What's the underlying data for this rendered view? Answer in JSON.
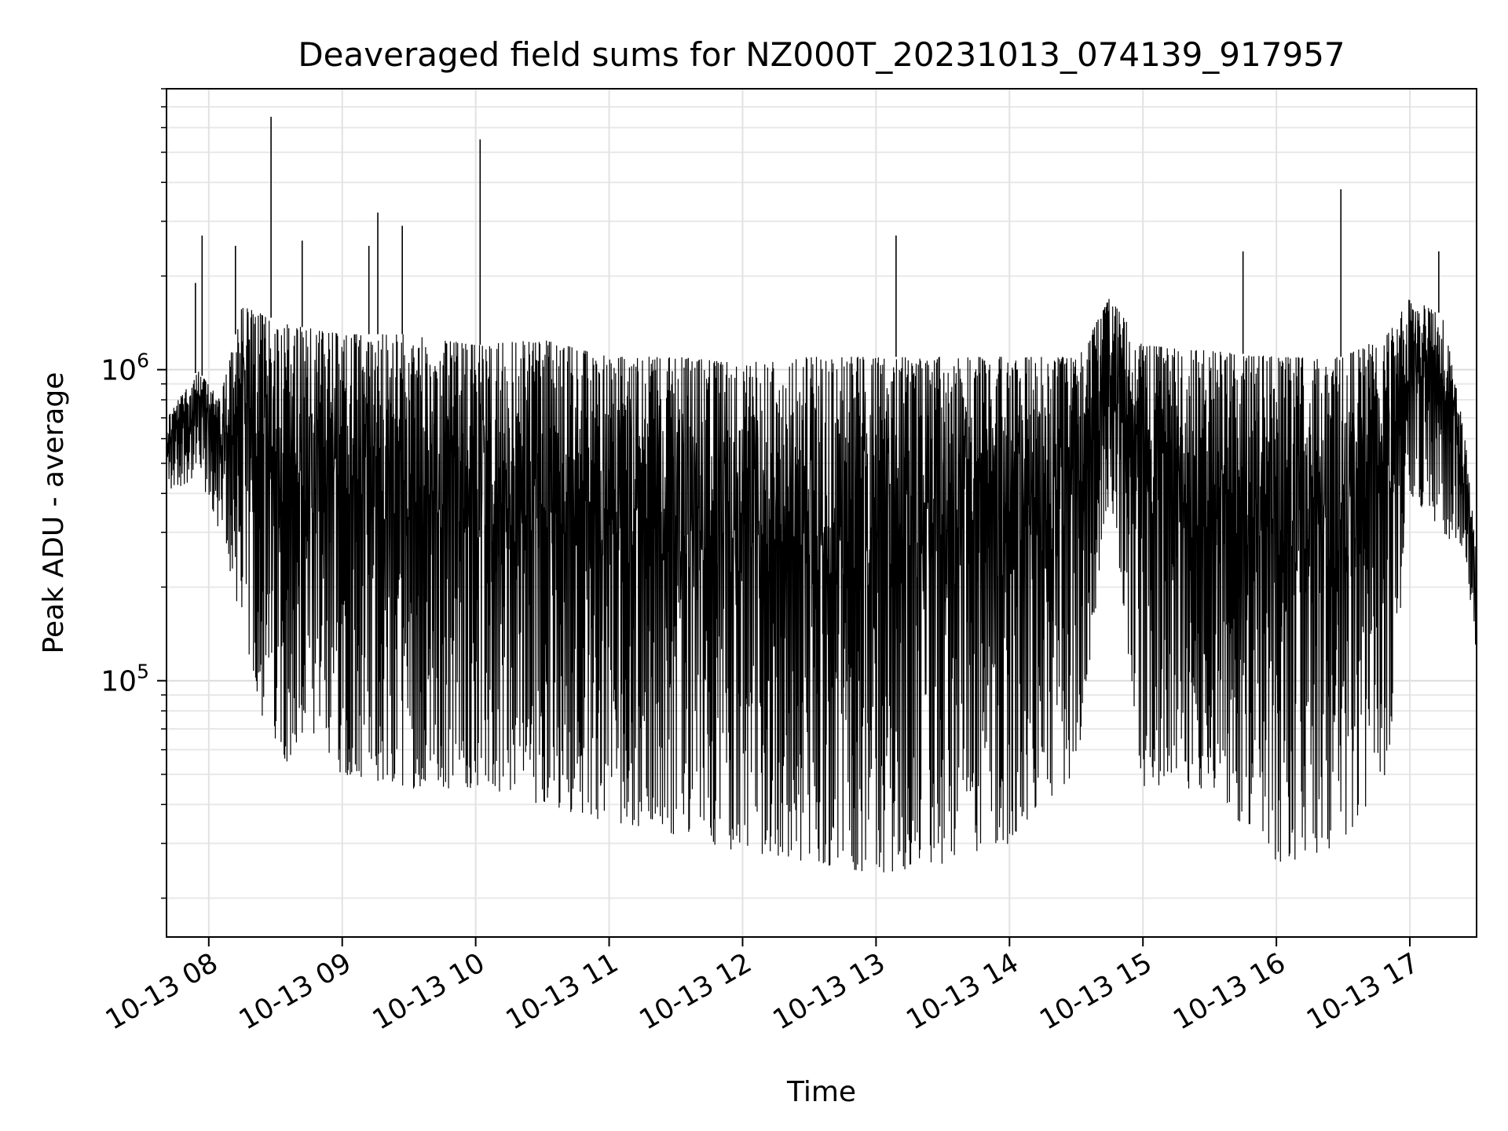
{
  "chart_data": {
    "type": "line",
    "title": "Deaveraged field sums for NZ000T_20231013_074139_917957",
    "xlabel": "Time",
    "ylabel": "Peak ADU - average",
    "yscale": "log",
    "xlim": [
      "2023-10-13 07:41",
      "2023-10-13 17:30"
    ],
    "ylim": [
      15000,
      8000000
    ],
    "grid": true,
    "line_color": "#000000",
    "x_ticks": [
      {
        "value": "2023-10-13 08:00",
        "label": "10-13 08"
      },
      {
        "value": "2023-10-13 09:00",
        "label": "10-13 09"
      },
      {
        "value": "2023-10-13 10:00",
        "label": "10-13 10"
      },
      {
        "value": "2023-10-13 11:00",
        "label": "10-13 11"
      },
      {
        "value": "2023-10-13 12:00",
        "label": "10-13 12"
      },
      {
        "value": "2023-10-13 13:00",
        "label": "10-13 13"
      },
      {
        "value": "2023-10-13 14:00",
        "label": "10-13 14"
      },
      {
        "value": "2023-10-13 15:00",
        "label": "10-13 15"
      },
      {
        "value": "2023-10-13 16:00",
        "label": "10-13 16"
      },
      {
        "value": "2023-10-13 17:00",
        "label": "10-13 17"
      }
    ],
    "y_ticks": [
      {
        "value": 100000,
        "base": "10",
        "exp": "5"
      },
      {
        "value": 1000000,
        "base": "10",
        "exp": "6"
      }
    ],
    "envelope": [
      {
        "t": "07:41",
        "max": 700000,
        "min": 400000
      },
      {
        "t": "07:55",
        "max": 1000000,
        "min": 450000
      },
      {
        "t": "08:05",
        "max": 800000,
        "min": 300000
      },
      {
        "t": "08:15",
        "max": 1600000,
        "min": 150000
      },
      {
        "t": "08:25",
        "max": 1500000,
        "min": 70000
      },
      {
        "t": "08:35",
        "max": 1400000,
        "min": 55000
      },
      {
        "t": "09:00",
        "max": 1300000,
        "min": 50000
      },
      {
        "t": "09:30",
        "max": 1300000,
        "min": 45000
      },
      {
        "t": "10:00",
        "max": 1200000,
        "min": 45000
      },
      {
        "t": "10:30",
        "max": 1250000,
        "min": 40000
      },
      {
        "t": "11:00",
        "max": 1100000,
        "min": 35000
      },
      {
        "t": "11:30",
        "max": 1100000,
        "min": 32000
      },
      {
        "t": "12:00",
        "max": 1050000,
        "min": 28000
      },
      {
        "t": "12:30",
        "max": 1100000,
        "min": 26000
      },
      {
        "t": "13:00",
        "max": 1100000,
        "min": 24000
      },
      {
        "t": "13:30",
        "max": 1100000,
        "min": 25000
      },
      {
        "t": "14:00",
        "max": 1100000,
        "min": 30000
      },
      {
        "t": "14:30",
        "max": 1100000,
        "min": 50000
      },
      {
        "t": "14:45",
        "max": 1700000,
        "min": 400000
      },
      {
        "t": "15:00",
        "max": 1200000,
        "min": 45000
      },
      {
        "t": "15:30",
        "max": 1150000,
        "min": 45000
      },
      {
        "t": "16:00",
        "max": 1100000,
        "min": 25000
      },
      {
        "t": "16:30",
        "max": 1100000,
        "min": 30000
      },
      {
        "t": "16:50",
        "max": 1300000,
        "min": 50000
      },
      {
        "t": "17:00",
        "max": 1700000,
        "min": 400000
      },
      {
        "t": "17:15",
        "max": 1500000,
        "min": 300000
      },
      {
        "t": "17:25",
        "max": 600000,
        "min": 250000
      },
      {
        "t": "17:30",
        "max": 250000,
        "min": 120000
      }
    ],
    "spikes": [
      {
        "t": "07:54",
        "value": 1900000
      },
      {
        "t": "07:57",
        "value": 2700000
      },
      {
        "t": "08:12",
        "value": 2500000
      },
      {
        "t": "08:28",
        "value": 6500000
      },
      {
        "t": "08:42",
        "value": 2600000
      },
      {
        "t": "09:12",
        "value": 2500000
      },
      {
        "t": "09:16",
        "value": 3200000
      },
      {
        "t": "09:27",
        "value": 2900000
      },
      {
        "t": "10:02",
        "value": 5500000
      },
      {
        "t": "13:09",
        "value": 2700000
      },
      {
        "t": "15:45",
        "value": 2400000
      },
      {
        "t": "16:29",
        "value": 3800000
      },
      {
        "t": "17:13",
        "value": 2400000
      }
    ]
  }
}
